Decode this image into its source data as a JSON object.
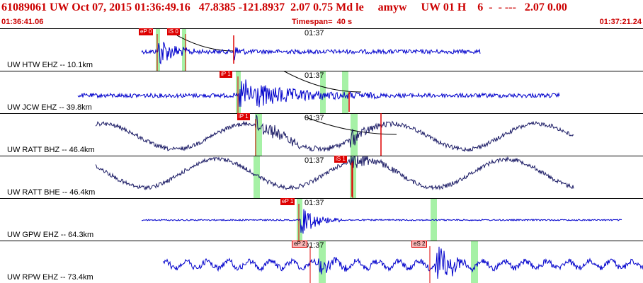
{
  "header": {
    "event_title": "61089061 UW Oct 07, 2015 01:36:49.16   47.8385 -121.8937  2.07 0.75 Md le     amyw     UW 01 H    6  -  - ---   2.07 0.00",
    "start_time": "01:36:41.06",
    "timespan": "Timespan=  40 s",
    "end_time": "01:37:21.24"
  },
  "colors": {
    "header_text": "#cc0000",
    "trace_blue": "#0000cc",
    "trace_navy": "#1c1c66",
    "pick_red": "#dd0000",
    "window_green": "#90ee90",
    "predicted_pink": "#f7b4b4"
  },
  "channels": [
    {
      "label": "UW HTW EHZ -- 10.1km",
      "minute_label": "01:37",
      "picks": [
        {
          "text": "eP 0",
          "kind": "auto"
        },
        {
          "text": "iS 0",
          "kind": "auto"
        }
      ]
    },
    {
      "label": "UW JCW EHZ -- 39.8km",
      "minute_label": "01:37",
      "picks": [
        {
          "text": "iP 1",
          "kind": "auto"
        }
      ]
    },
    {
      "label": "UW RATT BHZ -- 46.4km",
      "minute_label": "01:37",
      "picks": [
        {
          "text": "iP 1",
          "kind": "auto"
        }
      ]
    },
    {
      "label": "UW RATT BHE -- 46.4km",
      "minute_label": "01:37",
      "picks": [
        {
          "text": "iS 1",
          "kind": "auto"
        }
      ]
    },
    {
      "label": "UW GPW EHZ -- 64.3km",
      "minute_label": "01:37",
      "picks": [
        {
          "text": "eP 1",
          "kind": "auto"
        }
      ]
    },
    {
      "label": "UW RPW EHZ -- 73.4km",
      "minute_label": "01:37",
      "picks": [
        {
          "text": "eP 2",
          "kind": "pred"
        },
        {
          "text": "eS 2",
          "kind": "pred"
        }
      ]
    }
  ]
}
